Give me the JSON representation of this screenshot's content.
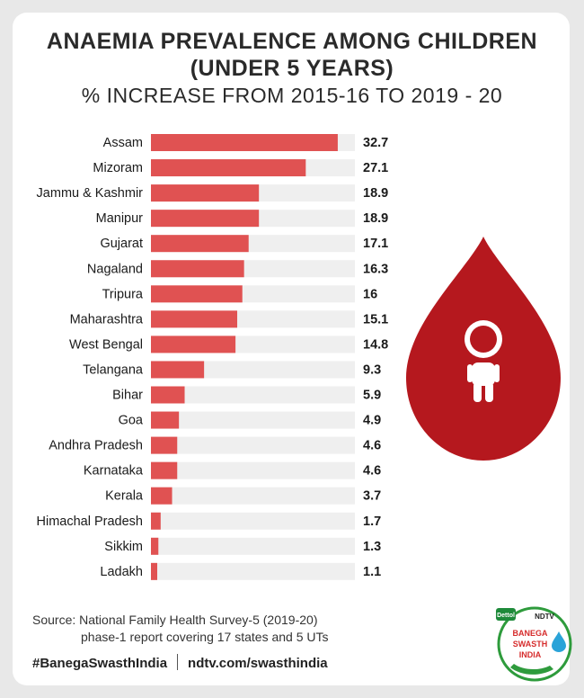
{
  "title_line1": "ANAEMIA PREVALENCE AMONG CHILDREN",
  "title_line2": "(UNDER 5 YEARS)",
  "title_line3": "% INCREASE FROM 2015-16 TO 2019 - 20",
  "chart_data": {
    "type": "bar",
    "orientation": "horizontal",
    "title": "ANAEMIA PREVALENCE AMONG CHILDREN (UNDER 5 YEARS) % INCREASE FROM 2015-16 TO 2019 - 20",
    "categories": [
      "Assam",
      "Mizoram",
      "Jammu & Kashmir",
      "Manipur",
      "Gujarat",
      "Nagaland",
      "Tripura",
      "Maharashtra",
      "West Bengal",
      "Telangana",
      "Bihar",
      "Goa",
      "Andhra Pradesh",
      "Karnataka",
      "Kerala",
      "Himachal Pradesh",
      "Sikkim",
      "Ladakh"
    ],
    "values": [
      32.7,
      27.1,
      18.9,
      18.9,
      17.1,
      16.3,
      16,
      15.1,
      14.8,
      9.3,
      5.9,
      4.9,
      4.6,
      4.6,
      3.7,
      1.7,
      1.3,
      1.1
    ],
    "value_labels": [
      "32.7",
      "27.1",
      "18.9",
      "18.9",
      "17.1",
      "16.3",
      "16",
      "15.1",
      "14.8",
      "9.3",
      "5.9",
      "4.9",
      "4.6",
      "4.6",
      "3.7",
      "1.7",
      "1.3",
      "1.1"
    ],
    "xlim": [
      0,
      35.7
    ],
    "bar_color": "#e05252",
    "track_color": "#efefef",
    "grid": false
  },
  "source_line1": "Source: National Family Health Survey-5 (2019-20)",
  "source_line2": "phase-1 report covering 17 states and 5 UTs",
  "footer_hashtag": "#BanegaSwasthIndia",
  "footer_url": "ndtv.com/swasthindia",
  "logo": {
    "brand_top_left": "Dettol",
    "brand_top_right": "NDTV",
    "line1": "BANEGA",
    "line2": "SWASTH",
    "line3": "INDIA"
  },
  "colors": {
    "drop": "#b5181e",
    "text": "#2a2a2a"
  },
  "icons": [
    "blood-drop-icon",
    "child-icon"
  ]
}
